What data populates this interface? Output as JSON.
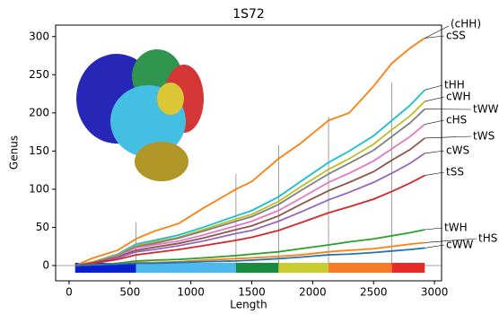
{
  "chart_data": {
    "type": "line",
    "title": "1S72",
    "x_label": "Length",
    "y_label": "Genus",
    "x": [
      50,
      200,
      400,
      550,
      700,
      900,
      1100,
      1370,
      1500,
      1720,
      1900,
      2130,
      2300,
      2500,
      2650,
      2800,
      2920
    ],
    "series": [
      {
        "name": "cSS",
        "color": "#ff7f0e",
        "values": [
          0,
          10,
          20,
          35,
          45,
          55,
          75,
          100,
          110,
          140,
          160,
          190,
          200,
          235,
          265,
          285,
          298
        ]
      },
      {
        "name": "tHH",
        "color": "#17becf",
        "values": [
          0,
          5,
          15,
          28,
          33,
          40,
          50,
          65,
          72,
          90,
          110,
          135,
          150,
          170,
          190,
          210,
          230
        ]
      },
      {
        "name": "cWH",
        "color": "#bcbd22",
        "values": [
          0,
          5,
          14,
          26,
          31,
          37,
          47,
          61,
          67,
          84,
          103,
          126,
          140,
          159,
          178,
          196,
          215
        ]
      },
      {
        "name": "tWW",
        "color": "#7f7f7f",
        "values": [
          0,
          4,
          13,
          25,
          29,
          36,
          45,
          58,
          64,
          80,
          98,
          120,
          134,
          151,
          169,
          187,
          205
        ]
      },
      {
        "name": "cHS",
        "color": "#e377c2",
        "values": [
          0,
          4,
          12,
          23,
          27,
          32,
          40,
          52,
          58,
          72,
          88,
          109,
          121,
          137,
          153,
          169,
          185
        ]
      },
      {
        "name": "tWS",
        "color": "#8c564b",
        "values": [
          0,
          4,
          11,
          20,
          24,
          29,
          36,
          47,
          52,
          65,
          80,
          98,
          109,
          123,
          138,
          152,
          167
        ]
      },
      {
        "name": "cWS",
        "color": "#9467bd",
        "values": [
          0,
          3,
          10,
          18,
          21,
          26,
          32,
          42,
          46,
          58,
          70,
          86,
          96,
          109,
          121,
          134,
          147
        ]
      },
      {
        "name": "tSS",
        "color": "#d62728",
        "values": [
          0,
          3,
          8,
          14,
          17,
          21,
          26,
          33,
          37,
          46,
          56,
          69,
          77,
          87,
          97,
          108,
          118
        ]
      },
      {
        "name": "tWH",
        "color": "#2ca02c",
        "values": [
          0,
          1,
          3,
          6,
          7,
          8,
          10,
          13,
          15,
          18,
          22,
          27,
          31,
          35,
          39,
          43,
          47
        ]
      },
      {
        "name": "tHS",
        "color": "#ff7f0e",
        "values": [
          0,
          1,
          2,
          4,
          4,
          5,
          7,
          9,
          10,
          12,
          14,
          18,
          20,
          22,
          25,
          28,
          30
        ]
      },
      {
        "name": "cWW",
        "color": "#1f77b4",
        "values": [
          0,
          1,
          2,
          3,
          3,
          4,
          5,
          6,
          7,
          9,
          11,
          14,
          15,
          17,
          19,
          21,
          23
        ]
      }
    ],
    "annotations": [
      "(cHH)"
    ],
    "domains": [
      {
        "start": 50,
        "end": 550,
        "color": "#0a1fd0"
      },
      {
        "start": 550,
        "end": 1370,
        "color": "#4db8ec"
      },
      {
        "start": 1370,
        "end": 1720,
        "color": "#1a8a3c"
      },
      {
        "start": 1720,
        "end": 2130,
        "color": "#c8cc30"
      },
      {
        "start": 2130,
        "end": 2650,
        "color": "#f77a28"
      },
      {
        "start": 2650,
        "end": 2920,
        "color": "#e82a2a"
      }
    ],
    "boundaries": [
      {
        "x": 550,
        "y": 57
      },
      {
        "x": 1370,
        "y": 120
      },
      {
        "x": 1720,
        "y": 158
      },
      {
        "x": 2130,
        "y": 195
      },
      {
        "x": 2650,
        "y": 240
      }
    ],
    "xlim": [
      -110,
      3058
    ],
    "ylim": [
      -20,
      315
    ],
    "xticks": [
      0,
      500,
      1000,
      1500,
      2000,
      2500,
      3000
    ],
    "yticks": [
      0,
      50,
      100,
      150,
      200,
      250,
      300
    ]
  }
}
